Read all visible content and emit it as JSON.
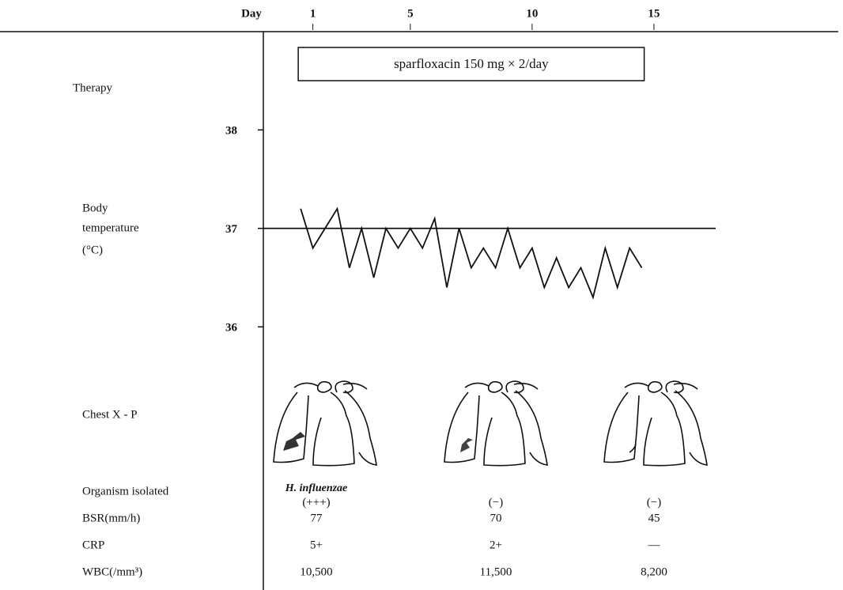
{
  "chart_data": {
    "type": "line",
    "x_label": "Day",
    "y_label": [
      "Body",
      "temperature",
      "(°C)"
    ],
    "x": [
      0.5,
      1,
      1.5,
      2,
      2.5,
      3,
      3.5,
      4,
      4.5,
      5,
      5.5,
      6,
      6.5,
      7,
      7.5,
      8,
      8.5,
      9,
      9.5,
      10,
      10.5,
      11,
      11.5,
      12,
      12.5,
      13,
      13.5,
      14,
      14.5
    ],
    "series": [
      {
        "color": "#111111",
        "values": [
          37.2,
          36.8,
          37.0,
          37.2,
          36.6,
          37.0,
          36.5,
          37.0,
          36.8,
          37.0,
          36.8,
          37.1,
          36.4,
          37.0,
          36.6,
          36.8,
          36.6,
          37.0,
          36.6,
          36.8,
          36.4,
          36.7,
          36.4,
          36.6,
          36.3,
          36.8,
          36.4,
          36.8,
          36.6
        ]
      }
    ],
    "xlim": [
      -1,
      22.5
    ],
    "xticks": [
      1,
      5,
      10,
      15
    ],
    "ylim": [
      35.4,
      38.5
    ],
    "yticks": [
      36,
      37,
      38
    ],
    "reference_line": 37,
    "therapy": {
      "label": "sparfloxacin 150 mg × 2/day",
      "start_day": 0.4,
      "end_day": 14.6
    }
  },
  "table": {
    "labels": {
      "therapy": "Therapy",
      "chest": "Chest X - P",
      "organism": "Organism isolated",
      "bsr": "BSR(mm/h)",
      "crp": "CRP",
      "wbc": "WBC(/mm³)"
    },
    "organism": [
      "H. influenzae",
      null,
      null
    ],
    "growth": [
      "(+++)",
      "(−)",
      "(−)"
    ],
    "bsr": [
      77,
      70,
      45
    ],
    "crp": [
      "5+",
      "2+",
      "—"
    ],
    "wbc": [
      "10,500",
      "11,500",
      "8,200"
    ]
  }
}
